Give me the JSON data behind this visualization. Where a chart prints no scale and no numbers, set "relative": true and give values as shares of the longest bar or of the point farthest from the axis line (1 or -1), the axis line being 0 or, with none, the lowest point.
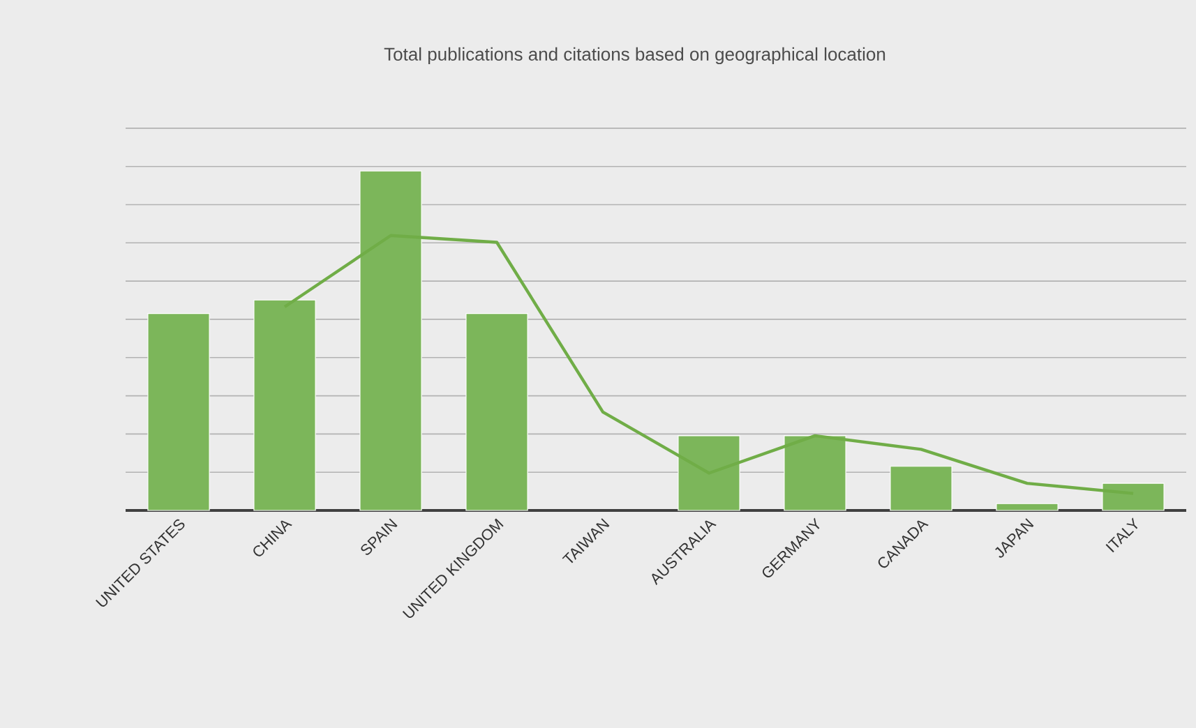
{
  "chart_data": {
    "type": "bar",
    "title": "Total publications and citations based on geographical location",
    "categories": [
      "UNITED STATES",
      "CHINA",
      "SPAIN",
      "UNITED KINGDOM",
      "TAIWAN",
      "AUSTRALIA",
      "GERMANY",
      "CANADA",
      "JAPAN",
      "ITALY"
    ],
    "relative": true,
    "grid": "y",
    "series": [
      {
        "color": "#7cb65a",
        "values": [
          0.58,
          0.62,
          1,
          0.58,
          null,
          0.22,
          0.22,
          0.13,
          0.02,
          0.08
        ]
      },
      {
        "type": "line",
        "color": "#70ad47",
        "values": [
          null,
          0.6,
          0.81,
          0.79,
          0.29,
          0.11,
          0.22,
          0.18,
          0.08,
          0.05
        ]
      }
    ]
  }
}
